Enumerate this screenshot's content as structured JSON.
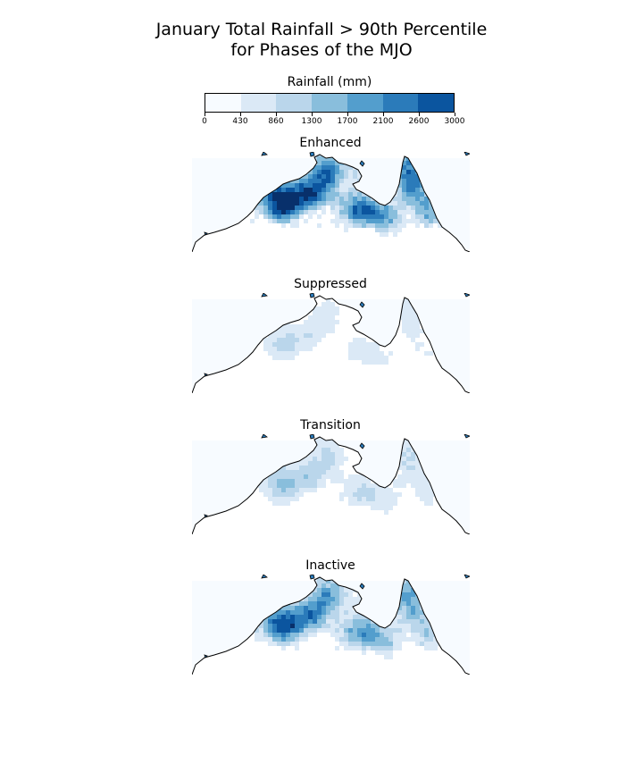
{
  "title_line1": "January Total Rainfall > 90th Percentile",
  "title_line2": "for Phases of the MJO",
  "colorbar": {
    "label": "Rainfall (mm)",
    "ticks": [
      "0",
      "430",
      "860",
      "1300",
      "1700",
      "2100",
      "2600",
      "3000"
    ],
    "colors": [
      "#f7fbff",
      "#dbe9f6",
      "#bad6eb",
      "#89bedc",
      "#539ecd",
      "#2b7bba",
      "#0b559f",
      "#08306b"
    ]
  },
  "panels": [
    {
      "title": "Enhanced",
      "level": 0.85
    },
    {
      "title": "Suppressed",
      "level": 0.22
    },
    {
      "title": "Transition",
      "level": 0.32
    },
    {
      "title": "Inactive",
      "level": 0.65
    }
  ]
}
